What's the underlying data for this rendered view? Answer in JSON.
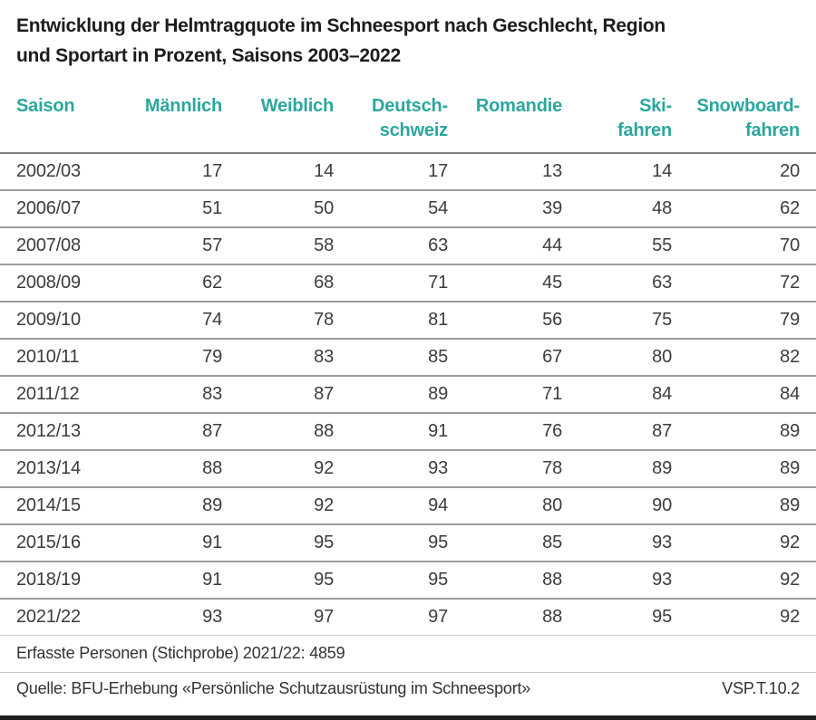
{
  "display": {
    "title": "Entwicklung der Helmtragquote im Schneesport nach Geschlecht, Region\nund Sportart in Prozent, Saisons 2003–2022",
    "headers": [
      "Saison",
      "Männlich",
      "Weiblich",
      "Deutsch-\nschweiz",
      "Romandie",
      "Ski-\nfahren",
      "Snowboard-\nfahren"
    ],
    "footnote": "Erfasste Personen (Stichprobe) 2021/22: 4859",
    "source": "Quelle: BFU-Erhebung «Persönliche Schutzausrüstung im Schneesport»",
    "reference": "VSP.T.10.2"
  },
  "colors": {
    "accent_teal": "#2aa79e",
    "title_text": "#1c1c1c",
    "body_text": "#3c3c3c",
    "row_separator": "#9c9c9c",
    "bottom_bar": "#1e1e1e"
  },
  "chart_data": {
    "type": "table",
    "title": "Entwicklung der Helmtragquote im Schneesport nach Geschlecht, Region und Sportart in Prozent, Saisons 2003–2022",
    "unit": "Prozent",
    "columns": [
      "Saison",
      "Männlich",
      "Weiblich",
      "Deutschschweiz",
      "Romandie",
      "Skifahren",
      "Snowboardfahren"
    ],
    "rows": [
      [
        "2002/03",
        17,
        14,
        17,
        13,
        14,
        20
      ],
      [
        "2006/07",
        51,
        50,
        54,
        39,
        48,
        62
      ],
      [
        "2007/08",
        57,
        58,
        63,
        44,
        55,
        70
      ],
      [
        "2008/09",
        62,
        68,
        71,
        45,
        63,
        72
      ],
      [
        "2009/10",
        74,
        78,
        81,
        56,
        75,
        79
      ],
      [
        "2010/11",
        79,
        83,
        85,
        67,
        80,
        82
      ],
      [
        "2011/12",
        83,
        87,
        89,
        71,
        84,
        84
      ],
      [
        "2012/13",
        87,
        88,
        91,
        76,
        87,
        89
      ],
      [
        "2013/14",
        88,
        92,
        93,
        78,
        89,
        89
      ],
      [
        "2014/15",
        89,
        92,
        94,
        80,
        90,
        89
      ],
      [
        "2015/16",
        91,
        95,
        95,
        85,
        93,
        92
      ],
      [
        "2018/19",
        91,
        95,
        95,
        88,
        93,
        92
      ],
      [
        "2021/22",
        93,
        97,
        97,
        88,
        95,
        92
      ]
    ],
    "source": "BFU-Erhebung «Persönliche Schutzausrüstung im Schneesport»",
    "sample_note": "Erfasste Personen (Stichprobe) 2021/22: 4859",
    "reference_code": "VSP.T.10.2"
  }
}
